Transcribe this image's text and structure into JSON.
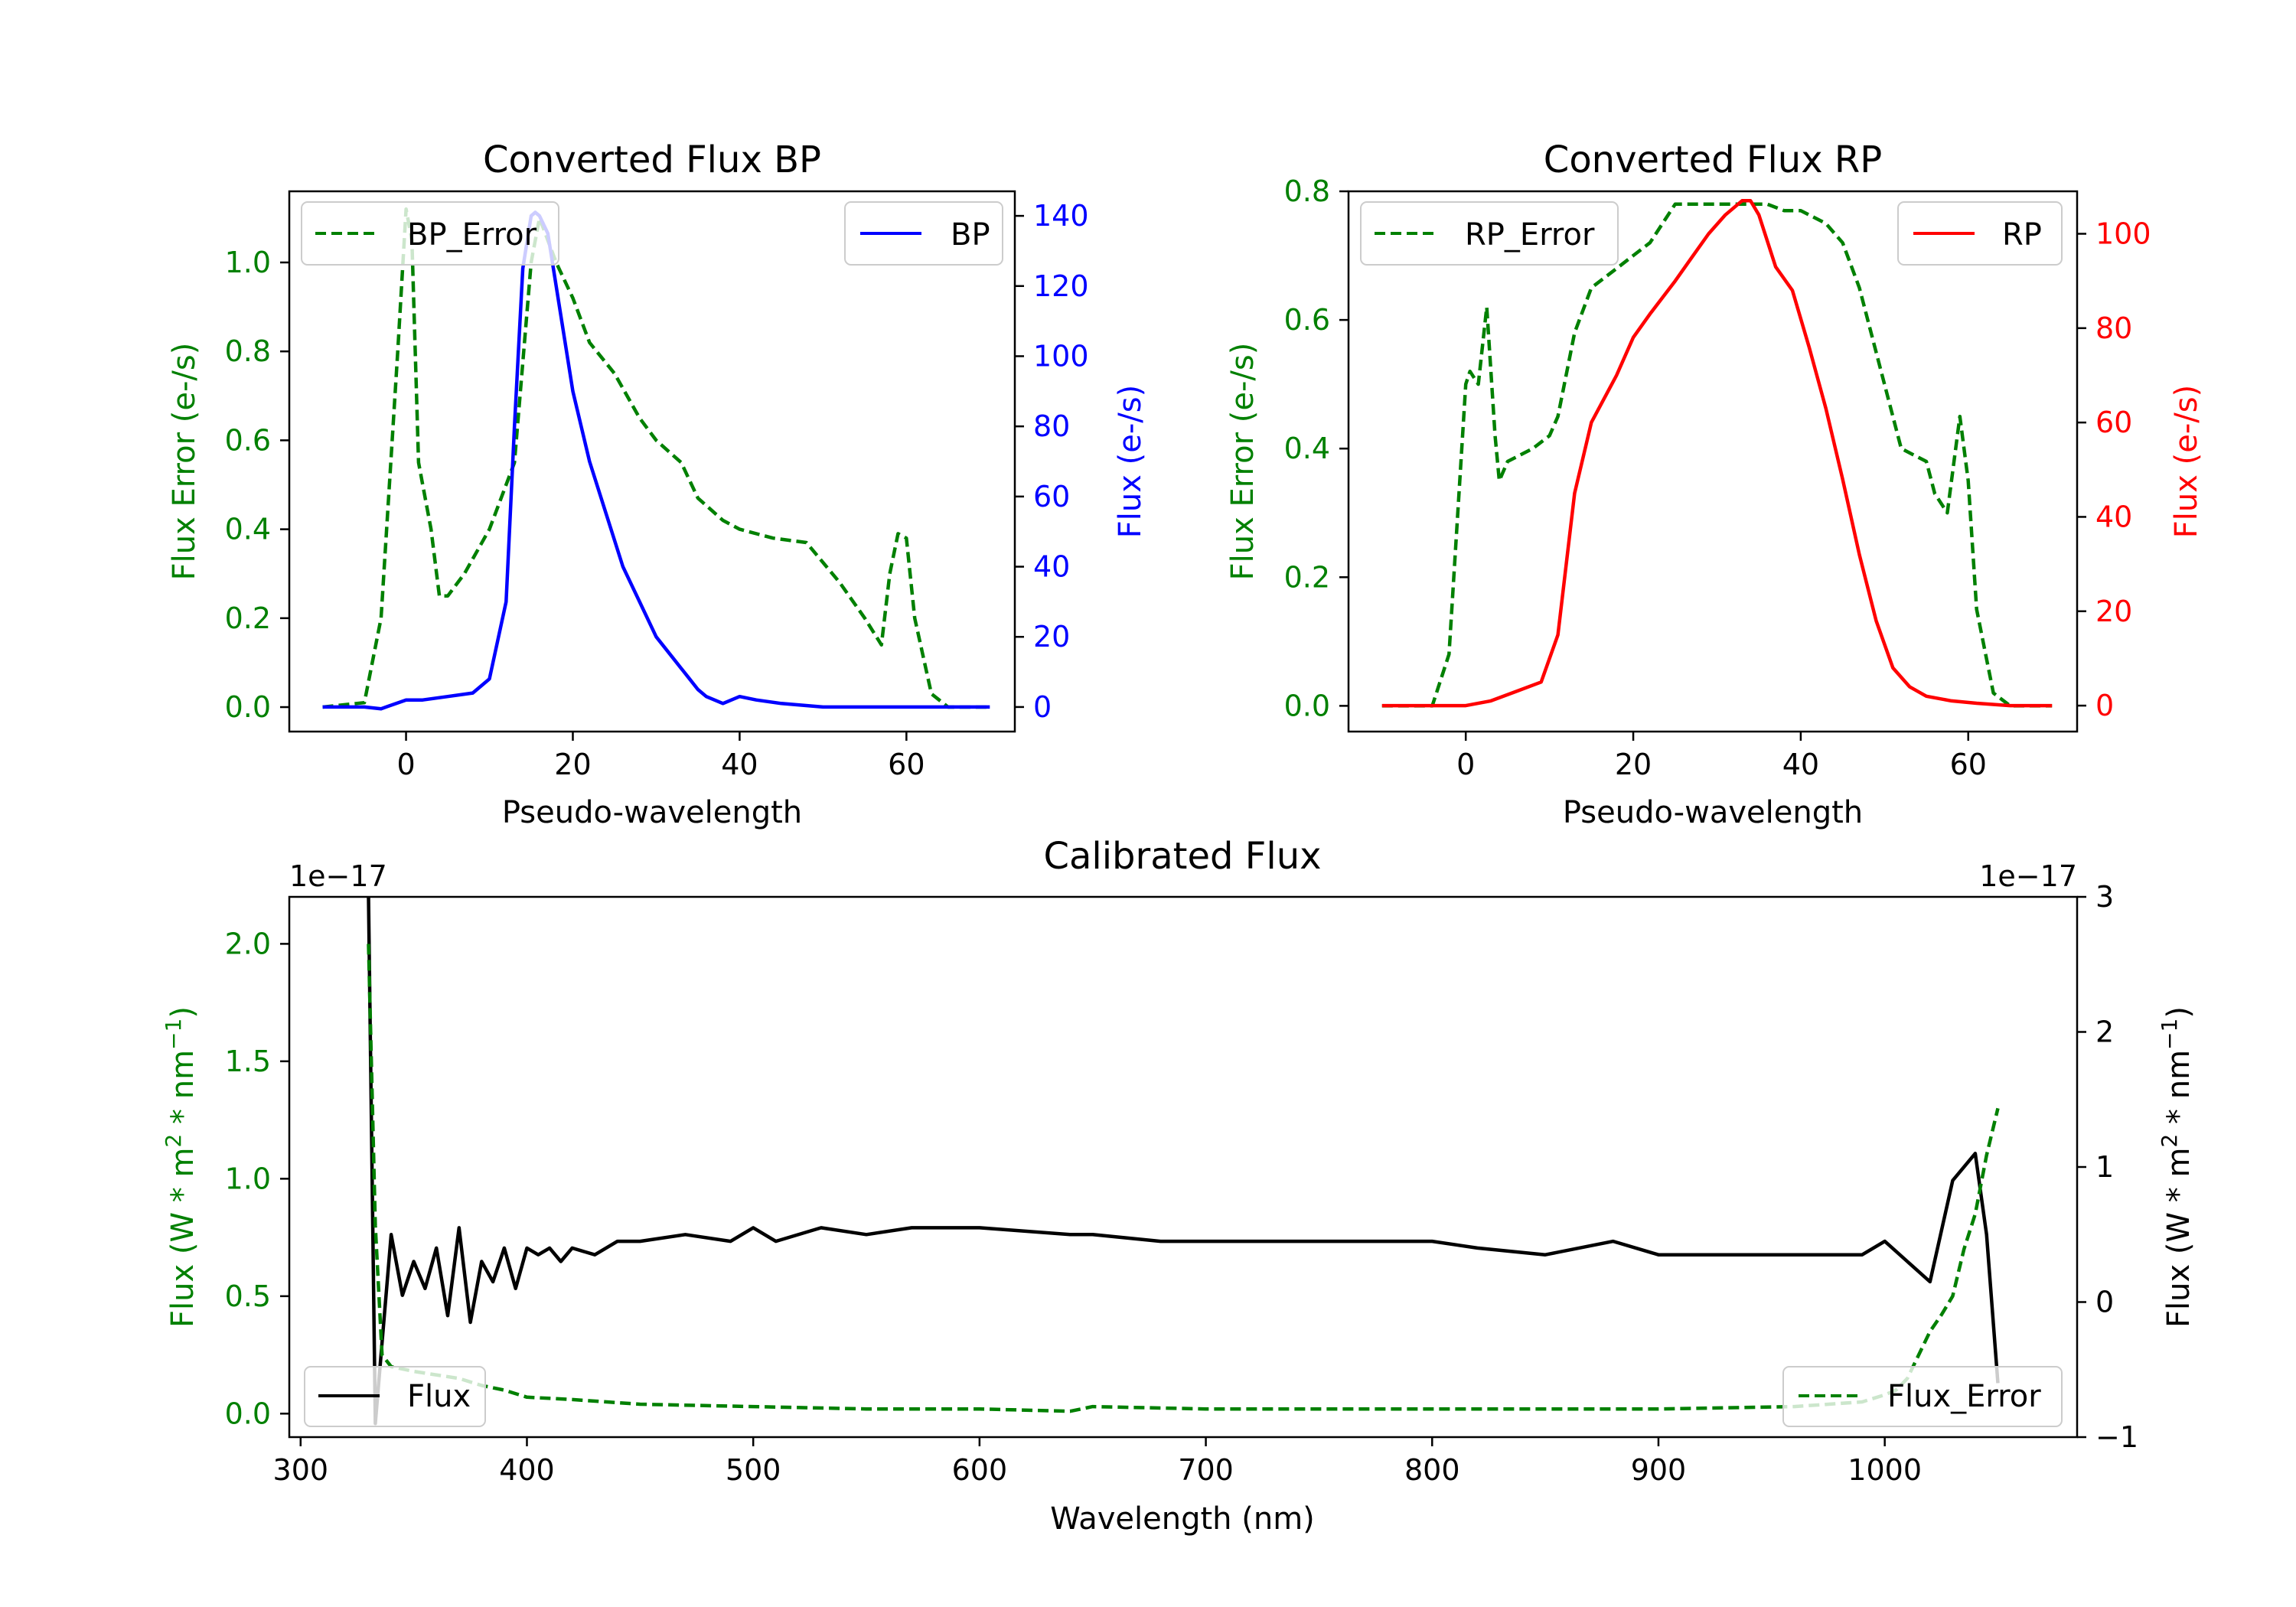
{
  "chart_data": [
    {
      "type": "line",
      "title": "Converted Flux BP",
      "xlabel": "Pseudo-wavelength",
      "ylabel_left": "Flux Error (e-/s)",
      "ylabel_right": "Flux (e-/s)",
      "xlim": [
        -14,
        73
      ],
      "ylim_left": [
        -0.055,
        1.16
      ],
      "ylim_right": [
        -7,
        147
      ],
      "xticks": [
        0,
        20,
        40,
        60
      ],
      "yticks_left": [
        0.0,
        0.2,
        0.4,
        0.6,
        0.8,
        1.0
      ],
      "yticks_right": [
        0,
        20,
        40,
        60,
        80,
        100,
        120,
        140
      ],
      "legend_left": "top-left",
      "legend_right": "top-right",
      "series": [
        {
          "name": "BP_Error",
          "axis": "left",
          "color": "#008000",
          "dash": true,
          "x": [
            -10,
            -5,
            -3,
            -1,
            0,
            0.7,
            1.5,
            3,
            4,
            5,
            7,
            10,
            13,
            15,
            16,
            18,
            20,
            22,
            25,
            28,
            30,
            33,
            35,
            38,
            40,
            44,
            48,
            52,
            55,
            57,
            58,
            59,
            60,
            61,
            63,
            65,
            70
          ],
          "y": [
            0.0,
            0.01,
            0.2,
            0.8,
            1.12,
            1.05,
            0.55,
            0.4,
            0.25,
            0.25,
            0.3,
            0.4,
            0.55,
            1.0,
            1.1,
            1.0,
            0.92,
            0.82,
            0.75,
            0.65,
            0.6,
            0.55,
            0.47,
            0.42,
            0.4,
            0.38,
            0.37,
            0.28,
            0.2,
            0.14,
            0.3,
            0.39,
            0.38,
            0.2,
            0.03,
            0.0,
            0.0
          ]
        },
        {
          "name": "BP",
          "axis": "right",
          "color": "#0000ff",
          "dash": false,
          "x": [
            -10,
            -5,
            -3,
            0,
            2,
            5,
            8,
            10,
            12,
            13,
            14,
            15,
            15.5,
            16,
            17,
            18,
            19,
            20,
            22,
            24,
            26,
            28,
            30,
            32,
            34,
            35,
            36,
            38,
            40,
            42,
            45,
            50,
            55,
            60,
            65,
            70
          ],
          "y": [
            0,
            0,
            -0.5,
            2,
            2,
            3,
            4,
            8,
            30,
            80,
            125,
            140,
            141,
            140,
            135,
            120,
            105,
            90,
            70,
            55,
            40,
            30,
            20,
            14,
            8,
            5,
            3,
            1,
            3,
            2,
            1,
            0,
            0,
            0,
            0,
            0
          ]
        }
      ]
    },
    {
      "type": "line",
      "title": "Converted Flux RP",
      "xlabel": "Pseudo-wavelength",
      "ylabel_left": "Flux Error (e-/s)",
      "ylabel_right": "Flux (e-/s)",
      "xlim": [
        -14,
        73
      ],
      "ylim_left": [
        -0.04,
        0.8
      ],
      "ylim_right": [
        -5.5,
        109
      ],
      "xticks": [
        0,
        20,
        40,
        60
      ],
      "yticks_left": [
        0.0,
        0.2,
        0.4,
        0.6,
        0.8
      ],
      "yticks_right": [
        0,
        20,
        40,
        60,
        80,
        100
      ],
      "legend_left": "top-left",
      "legend_right": "top-right",
      "series": [
        {
          "name": "RP_Error",
          "axis": "left",
          "color": "#008000",
          "dash": true,
          "x": [
            -10,
            -4,
            -2,
            0,
            0.5,
            1.5,
            2.5,
            3.5,
            4,
            5,
            8,
            10,
            11,
            13,
            15,
            18,
            20,
            22,
            25,
            28,
            30,
            32,
            34,
            36,
            38,
            40,
            43,
            45,
            47,
            50,
            52,
            55,
            56,
            57.5,
            59,
            60,
            61,
            63,
            65,
            70
          ],
          "y": [
            0.0,
            0.0,
            0.08,
            0.5,
            0.52,
            0.5,
            0.62,
            0.42,
            0.35,
            0.38,
            0.4,
            0.42,
            0.45,
            0.58,
            0.65,
            0.68,
            0.7,
            0.72,
            0.78,
            0.78,
            0.78,
            0.78,
            0.78,
            0.78,
            0.77,
            0.77,
            0.75,
            0.72,
            0.65,
            0.5,
            0.4,
            0.38,
            0.33,
            0.3,
            0.45,
            0.35,
            0.15,
            0.02,
            0.0,
            0.0
          ]
        },
        {
          "name": "RP",
          "axis": "right",
          "color": "#ff0000",
          "dash": false,
          "x": [
            -10,
            -2,
            0,
            3,
            6,
            9,
            11,
            12,
            13,
            15,
            18,
            20,
            22,
            25,
            27,
            29,
            31,
            33,
            34,
            35,
            37,
            39,
            41,
            43,
            45,
            47,
            49,
            51,
            53,
            55,
            58,
            61,
            65,
            70
          ],
          "y": [
            0,
            0,
            0,
            1,
            3,
            5,
            15,
            30,
            45,
            60,
            70,
            78,
            83,
            90,
            95,
            100,
            104,
            107,
            107,
            104,
            93,
            88,
            76,
            63,
            48,
            32,
            18,
            8,
            4,
            2,
            1,
            0.5,
            0,
            0
          ]
        }
      ]
    },
    {
      "type": "line",
      "title": "Calibrated Flux",
      "xlabel": "Wavelength (nm)",
      "ylabel_left": "Flux (W * m^2 * nm^-1)",
      "ylabel_right": "Flux (W * m^2 * nm^-1)",
      "offset_label_left": "1e−17",
      "offset_label_right": "1e−17",
      "xlim": [
        295,
        1085
      ],
      "ylim_left": [
        -0.1,
        2.2
      ],
      "ylim_right": [
        -1.0,
        3.0
      ],
      "xticks": [
        300,
        400,
        500,
        600,
        700,
        800,
        900,
        1000
      ],
      "yticks_left": [
        0.0,
        0.5,
        1.0,
        1.5,
        2.0
      ],
      "yticks_right": [
        -1,
        0,
        1,
        2,
        3
      ],
      "legend_left": "bottom-left",
      "legend_right": "bottom-right",
      "series": [
        {
          "name": "Flux",
          "axis": "right",
          "color": "#000000",
          "dash": false,
          "x": [
            330,
            333,
            336,
            340,
            345,
            350,
            355,
            360,
            365,
            370,
            375,
            380,
            385,
            390,
            395,
            400,
            405,
            410,
            415,
            420,
            430,
            440,
            450,
            470,
            490,
            500,
            510,
            530,
            550,
            570,
            600,
            640,
            650,
            680,
            700,
            720,
            750,
            780,
            800,
            820,
            850,
            880,
            900,
            930,
            960,
            990,
            1000,
            1010,
            1020,
            1030,
            1040,
            1045,
            1050
          ],
          "y": [
            3.0,
            -0.9,
            -0.3,
            0.5,
            0.05,
            0.3,
            0.1,
            0.4,
            -0.1,
            0.55,
            -0.15,
            0.3,
            0.15,
            0.4,
            0.1,
            0.4,
            0.35,
            0.4,
            0.3,
            0.4,
            0.35,
            0.45,
            0.45,
            0.5,
            0.45,
            0.55,
            0.45,
            0.55,
            0.5,
            0.55,
            0.55,
            0.5,
            0.5,
            0.45,
            0.45,
            0.45,
            0.45,
            0.45,
            0.45,
            0.4,
            0.35,
            0.45,
            0.35,
            0.35,
            0.35,
            0.35,
            0.45,
            0.3,
            0.15,
            0.9,
            1.1,
            0.5,
            -0.6
          ]
        },
        {
          "name": "Flux_Error",
          "axis": "left",
          "color": "#008000",
          "dash": true,
          "x": [
            330,
            333,
            336,
            340,
            350,
            370,
            380,
            390,
            400,
            420,
            450,
            500,
            550,
            600,
            640,
            650,
            700,
            800,
            900,
            960,
            990,
            1000,
            1005,
            1010,
            1015,
            1020,
            1025,
            1030,
            1035,
            1040,
            1045,
            1050
          ],
          "y": [
            2.0,
            0.8,
            0.25,
            0.2,
            0.18,
            0.15,
            0.12,
            0.1,
            0.07,
            0.06,
            0.04,
            0.03,
            0.02,
            0.02,
            0.01,
            0.03,
            0.02,
            0.02,
            0.02,
            0.03,
            0.05,
            0.08,
            0.1,
            0.15,
            0.25,
            0.35,
            0.42,
            0.5,
            0.7,
            0.85,
            1.1,
            1.3
          ]
        }
      ]
    }
  ]
}
